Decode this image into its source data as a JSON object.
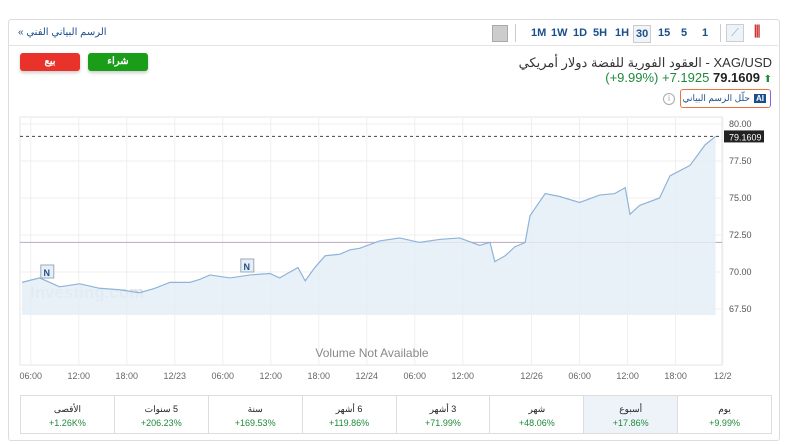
{
  "toolbar": {
    "timeframes": [
      "1M",
      "1W",
      "1D",
      "5H",
      "1H",
      "30",
      "15",
      "5",
      "1"
    ],
    "selected": "30",
    "technical_link": "الرسم البياني الفني »"
  },
  "instrument": {
    "title": "XAG/USD - العقود الفورية للفضة دولار أمريكي",
    "last": "79.1609",
    "change": "+7.1925",
    "change_pct": "(+9.99%)",
    "buy": "شراء",
    "sell": "بيع",
    "ai_button": "حلّل الرسم البياني",
    "ai_badge": "AI"
  },
  "colors": {
    "up": "#1e8a3a",
    "buy": "#1a9e1a",
    "sell": "#e8322a",
    "line": "#8fb4d9"
  },
  "chart_data": {
    "type": "area",
    "watermark": "Investing.com",
    "volume_text": "Volume Not Available",
    "price_tag": "79.1609",
    "reference_level": 72.0,
    "ylim": [
      66.5,
      80.8
    ],
    "yticks": [
      "67.50",
      "70.00",
      "72.50",
      "75.00",
      "77.50",
      "80.00"
    ],
    "xlim": [
      4.9,
      92.6
    ],
    "xticks": [
      {
        "t": 6,
        "label": "06:00"
      },
      {
        "t": 12,
        "label": "12:00"
      },
      {
        "t": 18,
        "label": "18:00"
      },
      {
        "t": 24,
        "label": "12/23"
      },
      {
        "t": 30,
        "label": "06:00"
      },
      {
        "t": 36,
        "label": "12:00"
      },
      {
        "t": 42,
        "label": "18:00"
      },
      {
        "t": 48,
        "label": "12/24"
      },
      {
        "t": 54,
        "label": "06:00"
      },
      {
        "t": 60,
        "label": "12:00"
      },
      {
        "t": 68.6,
        "label": "12/26"
      },
      {
        "t": 74.6,
        "label": "06:00"
      },
      {
        "t": 80.6,
        "label": "12:00"
      },
      {
        "t": 86.6,
        "label": "18:00"
      },
      {
        "t": 92.5,
        "label": "12/2"
      }
    ],
    "news_markers": [
      {
        "t": 8.0,
        "label": "N"
      },
      {
        "t": 33.0,
        "label": "N"
      }
    ],
    "points": [
      [
        4.9,
        69.3
      ],
      [
        7.1,
        69.6
      ],
      [
        9.6,
        69.0
      ],
      [
        12.1,
        69.2
      ],
      [
        14.6,
        68.9
      ],
      [
        17.1,
        68.8
      ],
      [
        19.6,
        68.6
      ],
      [
        21.5,
        68.9
      ],
      [
        23.4,
        69.3
      ],
      [
        25.9,
        69.3
      ],
      [
        27.1,
        69.5
      ],
      [
        28.4,
        69.8
      ],
      [
        30.9,
        69.6
      ],
      [
        33.4,
        69.8
      ],
      [
        35.9,
        69.9
      ],
      [
        37.1,
        69.6
      ],
      [
        38.4,
        70.0
      ],
      [
        39.4,
        70.3
      ],
      [
        40.3,
        69.4
      ],
      [
        41.5,
        70.3
      ],
      [
        42.8,
        71.1
      ],
      [
        44.6,
        71.2
      ],
      [
        45.9,
        71.5
      ],
      [
        47.1,
        71.6
      ],
      [
        49.6,
        72.1
      ],
      [
        52.1,
        72.3
      ],
      [
        54.6,
        72.0
      ],
      [
        57.1,
        72.2
      ],
      [
        59.6,
        72.3
      ],
      [
        62.1,
        71.8
      ],
      [
        63.4,
        72.0
      ],
      [
        64.0,
        70.7
      ],
      [
        65.3,
        71.1
      ],
      [
        66.5,
        71.7
      ],
      [
        67.8,
        72.0
      ],
      [
        68.4,
        73.8
      ],
      [
        70.3,
        75.3
      ],
      [
        72.1,
        75.1
      ],
      [
        74.6,
        74.7
      ],
      [
        77.1,
        75.2
      ],
      [
        79.0,
        75.3
      ],
      [
        80.3,
        75.7
      ],
      [
        80.9,
        73.9
      ],
      [
        82.1,
        74.5
      ],
      [
        84.6,
        75.0
      ],
      [
        85.9,
        76.5
      ],
      [
        88.4,
        77.2
      ],
      [
        90.3,
        78.6
      ],
      [
        91.6,
        79.16
      ]
    ]
  },
  "periods": [
    {
      "label": "يوم",
      "value": "+9.99%"
    },
    {
      "label": "أسبوع",
      "value": "+17.86%",
      "selected": true
    },
    {
      "label": "شهر",
      "value": "+48.06%"
    },
    {
      "label": "3 أشهر",
      "value": "+71.99%"
    },
    {
      "label": "6 أشهر",
      "value": "+119.86%"
    },
    {
      "label": "سنة",
      "value": "+169.53%"
    },
    {
      "label": "5 سنوات",
      "value": "+206.23%"
    },
    {
      "label": "الأقصى",
      "value": "+1.26K%"
    }
  ]
}
